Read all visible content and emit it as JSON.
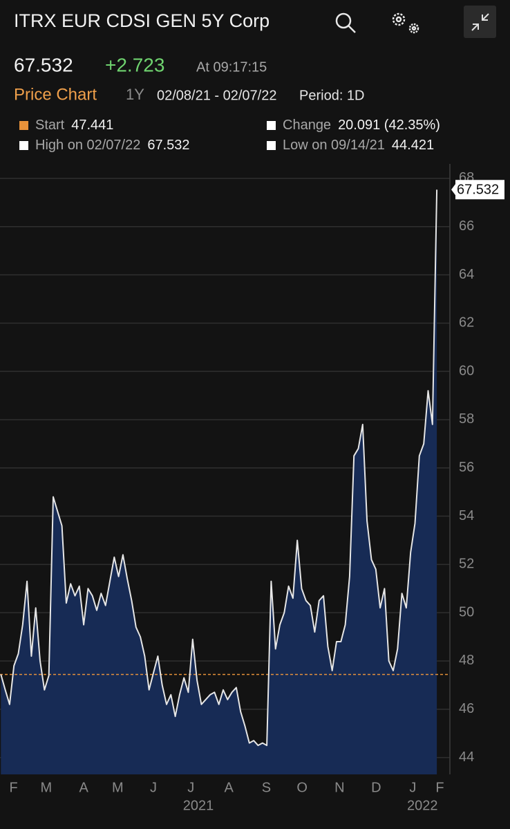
{
  "header": {
    "title": "ITRX EUR CDSI GEN 5Y Corp",
    "last": "67.532",
    "change": "+2.723",
    "time": "At 09:17:15",
    "chart_label": "Price Chart",
    "range": "1Y",
    "dates": "02/08/21 - 02/07/22",
    "period": "Period: 1D"
  },
  "stats": [
    {
      "label": "Start",
      "value": "47.441"
    },
    {
      "label": "Change",
      "value": "20.091 (42.35%)"
    },
    {
      "label": "High on 02/07/22",
      "value": "67.532"
    },
    {
      "label": "Low on 09/14/21",
      "value": "44.421"
    }
  ],
  "chart_data": {
    "type": "area",
    "x": [
      2021.1,
      2021.11,
      2021.12,
      2021.13,
      2021.14,
      2021.15,
      2021.16,
      2021.17,
      2021.18,
      2021.19,
      2021.2,
      2021.21,
      2021.22,
      2021.23,
      2021.24,
      2021.25,
      2021.26,
      2021.27,
      2021.28,
      2021.29,
      2021.3,
      2021.31,
      2021.32,
      2021.33,
      2021.34,
      2021.35,
      2021.36,
      2021.37,
      2021.38,
      2021.39,
      2021.4,
      2021.41,
      2021.42,
      2021.43,
      2021.44,
      2021.45,
      2021.46,
      2021.47,
      2021.48,
      2021.49,
      2021.5,
      2021.51,
      2021.52,
      2021.53,
      2021.54,
      2021.55,
      2021.56,
      2021.57,
      2021.58,
      2021.59,
      2021.6,
      2021.61,
      2021.62,
      2021.63,
      2021.64,
      2021.65,
      2021.66,
      2021.67,
      2021.68,
      2021.69,
      2021.7,
      2021.71,
      2021.72,
      2021.73,
      2021.74,
      2021.75,
      2021.76,
      2021.77,
      2021.78,
      2021.79,
      2021.8,
      2021.81,
      2021.82,
      2021.83,
      2021.84,
      2021.85,
      2021.86,
      2021.87,
      2021.88,
      2021.89,
      2021.9,
      2021.91,
      2021.92,
      2021.93,
      2021.94,
      2021.95,
      2021.96,
      2021.97,
      2021.98,
      2021.99,
      2022.0,
      2022.01,
      2022.02,
      2022.03,
      2022.04,
      2022.05,
      2022.06,
      2022.07,
      2022.08,
      2022.09,
      2022.1
    ],
    "series": [
      {
        "color": "#e6e6e6",
        "fill": "#172b55",
        "values": [
          47.441,
          46.8,
          46.2,
          47.8,
          48.3,
          49.5,
          51.3,
          48.2,
          50.2,
          48.0,
          46.8,
          47.4,
          54.8,
          54.2,
          53.6,
          50.4,
          51.2,
          50.7,
          51.1,
          49.5,
          51.0,
          50.7,
          50.1,
          50.8,
          50.3,
          51.3,
          52.3,
          51.5,
          52.4,
          51.4,
          50.5,
          49.4,
          49.0,
          48.2,
          46.8,
          47.5,
          48.2,
          47.0,
          46.2,
          46.6,
          45.7,
          46.6,
          47.3,
          46.7,
          48.9,
          47.2,
          46.2,
          46.4,
          46.6,
          46.7,
          46.2,
          46.8,
          46.4,
          46.7,
          46.9,
          45.9,
          45.3,
          44.6,
          44.7,
          44.5,
          44.6,
          44.5,
          51.3,
          48.5,
          49.5,
          50.0,
          51.1,
          50.6,
          53.0,
          51.0,
          50.5,
          50.3,
          49.2,
          50.5,
          50.7,
          48.6,
          47.6,
          48.8,
          48.8,
          49.5,
          51.5,
          56.5,
          56.8,
          57.8,
          53.8,
          52.2,
          51.8,
          50.2,
          51.0,
          48.0,
          47.6,
          48.5,
          50.8,
          50.2,
          52.5,
          53.7,
          56.5,
          57.0,
          59.2,
          57.8,
          67.532
        ]
      }
    ],
    "reference_line": 47.441,
    "reference_color": "#e8923a",
    "xlim": [
      2021.098,
      2022.13
    ],
    "xticks": [
      {
        "value": 2021.129,
        "label": "F"
      },
      {
        "value": 2021.204,
        "label": "M"
      },
      {
        "value": 2021.29,
        "label": "A"
      },
      {
        "value": 2021.368,
        "label": "M"
      },
      {
        "value": 2021.45,
        "label": "J"
      },
      {
        "value": 2021.536,
        "label": "J"
      },
      {
        "value": 2021.623,
        "label": "A"
      },
      {
        "value": 2021.709,
        "label": "S"
      },
      {
        "value": 2021.791,
        "label": "O"
      },
      {
        "value": 2021.877,
        "label": "N"
      },
      {
        "value": 2021.961,
        "label": "D"
      },
      {
        "value": 2022.045,
        "label": "J"
      },
      {
        "value": 2022.107,
        "label": "F"
      }
    ],
    "year_ticks": [
      {
        "value": 2021.553,
        "label": "2021"
      },
      {
        "value": 2022.067,
        "label": "2022"
      }
    ],
    "ylim": [
      43.3,
      68.6
    ],
    "yticks": [
      44,
      46,
      48,
      50,
      52,
      54,
      56,
      58,
      60,
      62,
      64,
      66,
      68
    ],
    "grid": true
  }
}
